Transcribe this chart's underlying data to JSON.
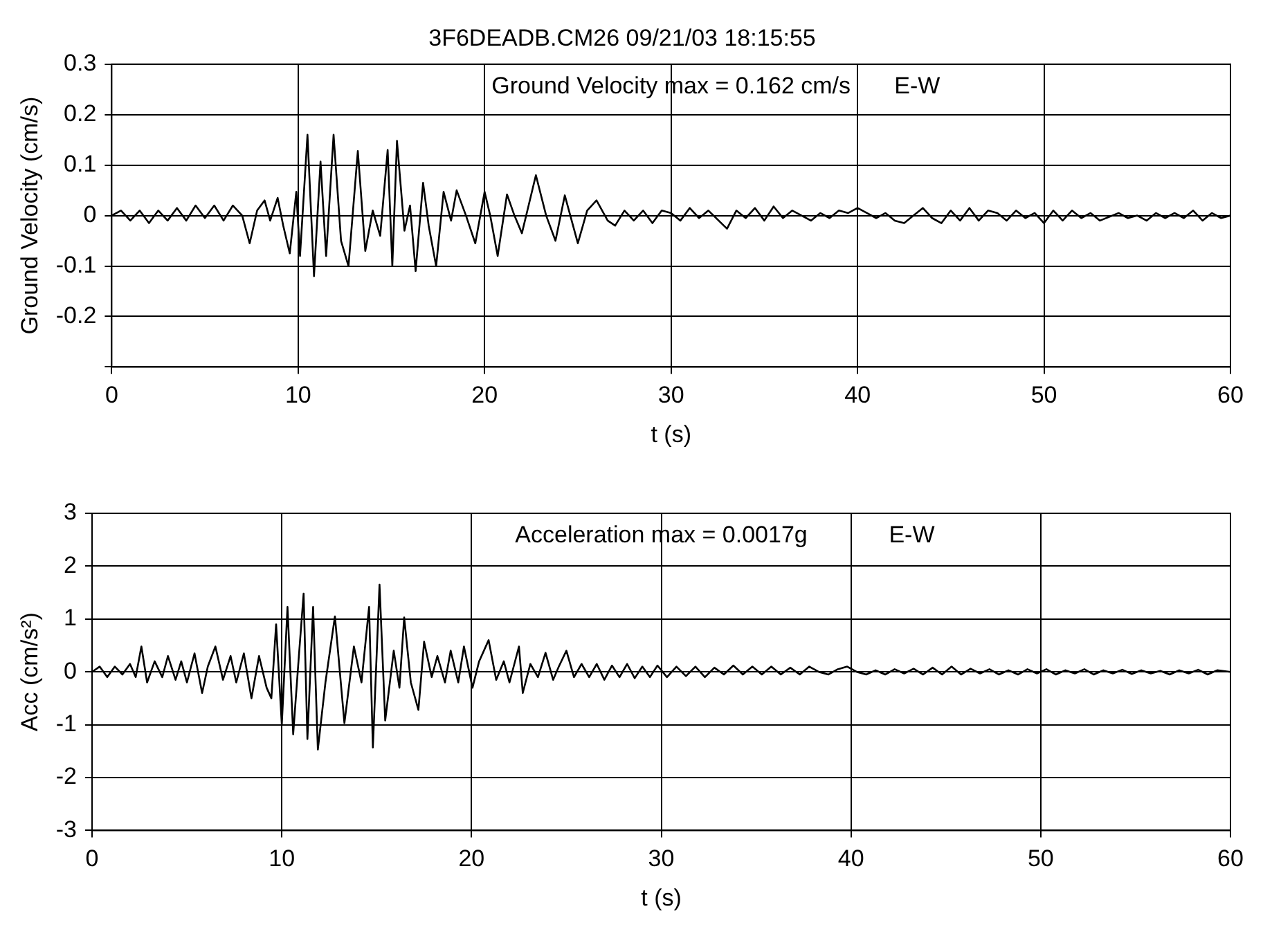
{
  "chart_data": [
    {
      "type": "line",
      "title": "3F6DEADB.CM26 09/21/03 18:15:55",
      "xlabel": "t (s)",
      "ylabel": "Ground Velocity (cm/s)",
      "annotations": [
        "Ground Velocity max = 0.162 cm/s",
        "E-W"
      ],
      "xlim": [
        0,
        60
      ],
      "xticks": [
        0,
        10,
        20,
        30,
        40,
        50,
        60
      ],
      "ylim": [
        -0.3,
        0.3
      ],
      "yticks": [
        {
          "value": -0.3,
          "label": null
        },
        -0.2,
        -0.1,
        0,
        0.1,
        0.2,
        0.3
      ],
      "grid": true,
      "series": [
        {
          "color": "#000000",
          "x": [
            0,
            0.5,
            1,
            1.5,
            2,
            2.5,
            3,
            3.5,
            4,
            4.5,
            5,
            5.5,
            6,
            6.5,
            7,
            7.4,
            7.8,
            8.2,
            8.5,
            8.9,
            9.2,
            9.55,
            9.9,
            10.1,
            10.5,
            10.85,
            11.2,
            11.5,
            11.9,
            12.3,
            12.7,
            13.2,
            13.6,
            14,
            14.4,
            14.8,
            15.05,
            15.3,
            15.7,
            16,
            16.3,
            16.7,
            17,
            17.4,
            17.8,
            18.2,
            18.5,
            19,
            19.5,
            20,
            20.3,
            20.7,
            21.2,
            21.6,
            22,
            22.75,
            23.3,
            23.8,
            24.3,
            25,
            25.5,
            26,
            26.6,
            27,
            27.5,
            28,
            28.5,
            29,
            29.5,
            30,
            30.5,
            31,
            31.5,
            32,
            33,
            33.5,
            34,
            34.5,
            35,
            35.5,
            36,
            36.5,
            37,
            37.5,
            38,
            38.5,
            39,
            39.5,
            40,
            40.5,
            41,
            41.5,
            42,
            42.5,
            43,
            43.5,
            44,
            44.5,
            45,
            45.5,
            46,
            46.5,
            47,
            47.5,
            48,
            48.5,
            49,
            49.5,
            50,
            50.5,
            51,
            51.5,
            52,
            52.5,
            53,
            54,
            54.5,
            55,
            55.5,
            56,
            56.5,
            57,
            57.5,
            58,
            58.5,
            59,
            59.5,
            60
          ],
          "values": [
            0,
            0.01,
            -0.01,
            0.01,
            -0.015,
            0.01,
            -0.01,
            0.015,
            -0.01,
            0.02,
            -0.005,
            0.02,
            -0.01,
            0.02,
            0,
            -0.055,
            0.01,
            0.03,
            -0.01,
            0.035,
            -0.02,
            -0.075,
            0.047,
            -0.08,
            0.16,
            -0.12,
            0.107,
            -0.08,
            0.16,
            -0.05,
            -0.1,
            0.128,
            -0.07,
            0.01,
            -0.04,
            0.13,
            -0.1,
            0.148,
            -0.03,
            0.02,
            -0.11,
            0.065,
            -0.02,
            -0.1,
            0.047,
            -0.01,
            0.05,
            0,
            -0.055,
            0.047,
            0,
            -0.08,
            0.042,
            0,
            -0.035,
            0.08,
            0,
            -0.05,
            0.04,
            -0.055,
            0.01,
            0.03,
            -0.01,
            -0.02,
            0.01,
            -0.01,
            0.01,
            -0.015,
            0.01,
            0.005,
            -0.01,
            0.015,
            -0.005,
            0.01,
            -0.026,
            0.01,
            -0.005,
            0.015,
            -0.01,
            0.018,
            -0.005,
            0.01,
            0,
            -0.01,
            0.005,
            -0.005,
            0.01,
            0.005,
            0.015,
            0.005,
            -0.005,
            0.005,
            -0.01,
            -0.015,
            0,
            0.015,
            -0.005,
            -0.015,
            0.01,
            -0.01,
            0.015,
            -0.01,
            0.01,
            0.005,
            -0.01,
            0.01,
            -0.005,
            0.005,
            -0.015,
            0.01,
            -0.01,
            0.01,
            -0.005,
            0.005,
            -0.01,
            0.005,
            -0.005,
            0,
            -0.01,
            0.005,
            -0.005,
            0.005,
            -0.005,
            0.01,
            -0.01,
            0.005,
            -0.005,
            0
          ]
        }
      ]
    },
    {
      "type": "line",
      "xlabel": "t (s)",
      "ylabel": "Acc (cm/s²)",
      "annotations": [
        "Acceleration max = 0.0017g",
        "E-W"
      ],
      "xlim": [
        0,
        60
      ],
      "xticks": [
        0,
        10,
        20,
        30,
        40,
        50,
        60
      ],
      "ylim": [
        -3,
        3
      ],
      "yticks": [
        -3,
        -2,
        -1,
        0,
        1,
        2,
        3
      ],
      "grid": true,
      "series": [
        {
          "color": "#000000",
          "x": [
            0,
            0.4,
            0.8,
            1.2,
            1.6,
            2,
            2.3,
            2.6,
            2.9,
            3.3,
            3.7,
            4,
            4.4,
            4.7,
            5,
            5.4,
            5.8,
            6.1,
            6.5,
            6.9,
            7.3,
            7.6,
            8,
            8.4,
            8.8,
            9.2,
            9.45,
            9.7,
            10,
            10.3,
            10.6,
            10.9,
            11.15,
            11.35,
            11.65,
            11.9,
            12.3,
            12.8,
            13.3,
            13.8,
            14.2,
            14.6,
            14.8,
            15.15,
            15.45,
            15.9,
            16.2,
            16.45,
            16.8,
            17.2,
            17.5,
            17.9,
            18.2,
            18.6,
            18.9,
            19.3,
            19.6,
            20.05,
            20.4,
            20.9,
            21.3,
            21.7,
            22,
            22.5,
            22.7,
            23.1,
            23.5,
            23.9,
            24.3,
            24.6,
            25,
            25.4,
            25.8,
            26.2,
            26.6,
            27,
            27.4,
            27.8,
            28.2,
            28.6,
            29,
            29.4,
            29.8,
            30.3,
            30.8,
            31.3,
            31.8,
            32.3,
            32.8,
            33.3,
            33.8,
            34.3,
            34.8,
            35.3,
            35.8,
            36.3,
            36.8,
            37.3,
            37.8,
            38.3,
            38.8,
            39.3,
            39.8,
            40.3,
            40.8,
            41.3,
            41.8,
            42.3,
            42.8,
            43.3,
            43.8,
            44.3,
            44.8,
            45.3,
            45.8,
            46.3,
            46.8,
            47.3,
            47.8,
            48.3,
            48.8,
            49.3,
            49.8,
            50.3,
            50.8,
            51.3,
            51.8,
            52.3,
            52.8,
            53.3,
            53.8,
            54.3,
            54.8,
            55.3,
            55.8,
            56.3,
            56.8,
            57.3,
            57.8,
            58.3,
            58.8,
            59.3,
            60
          ],
          "values": [
            0,
            0.1,
            -0.1,
            0.1,
            -0.05,
            0.15,
            -0.1,
            0.48,
            -0.2,
            0.2,
            -0.1,
            0.3,
            -0.15,
            0.2,
            -0.2,
            0.35,
            -0.4,
            0.1,
            0.48,
            -0.15,
            0.3,
            -0.2,
            0.35,
            -0.5,
            0.3,
            -0.3,
            -0.5,
            0.9,
            -1,
            1.23,
            -1.18,
            0.3,
            1.48,
            -1.27,
            1.23,
            -1.47,
            -0.2,
            1.05,
            -0.97,
            0.48,
            -0.2,
            1.23,
            -1.43,
            1.65,
            -0.92,
            0.4,
            -0.3,
            1.03,
            -0.2,
            -0.72,
            0.57,
            -0.1,
            0.3,
            -0.2,
            0.4,
            -0.2,
            0.48,
            -0.3,
            0.2,
            0.6,
            -0.15,
            0.2,
            -0.2,
            0.48,
            -0.4,
            0.15,
            -0.1,
            0.36,
            -0.15,
            0.1,
            0.4,
            -0.1,
            0.15,
            -0.1,
            0.15,
            -0.15,
            0.12,
            -0.1,
            0.15,
            -0.12,
            0.1,
            -0.1,
            0.12,
            -0.1,
            0.1,
            -0.08,
            0.1,
            -0.1,
            0.08,
            -0.05,
            0.12,
            -0.05,
            0.1,
            -0.05,
            0.1,
            -0.05,
            0.08,
            -0.05,
            0.1,
            0,
            -0.05,
            0.05,
            0.1,
            0,
            -0.05,
            0.03,
            -0.05,
            0.05,
            -0.03,
            0.06,
            -0.05,
            0.08,
            -0.05,
            0.1,
            -0.05,
            0.06,
            -0.03,
            0.05,
            -0.05,
            0.03,
            -0.05,
            0.05,
            -0.03,
            0.05,
            -0.05,
            0.03,
            -0.03,
            0.05,
            -0.05,
            0.03,
            -0.03,
            0.04,
            -0.04,
            0.03,
            -0.03,
            0.02,
            -0.05,
            0.03,
            -0.03,
            0.04,
            -0.05,
            0.03,
            0
          ]
        }
      ]
    }
  ]
}
